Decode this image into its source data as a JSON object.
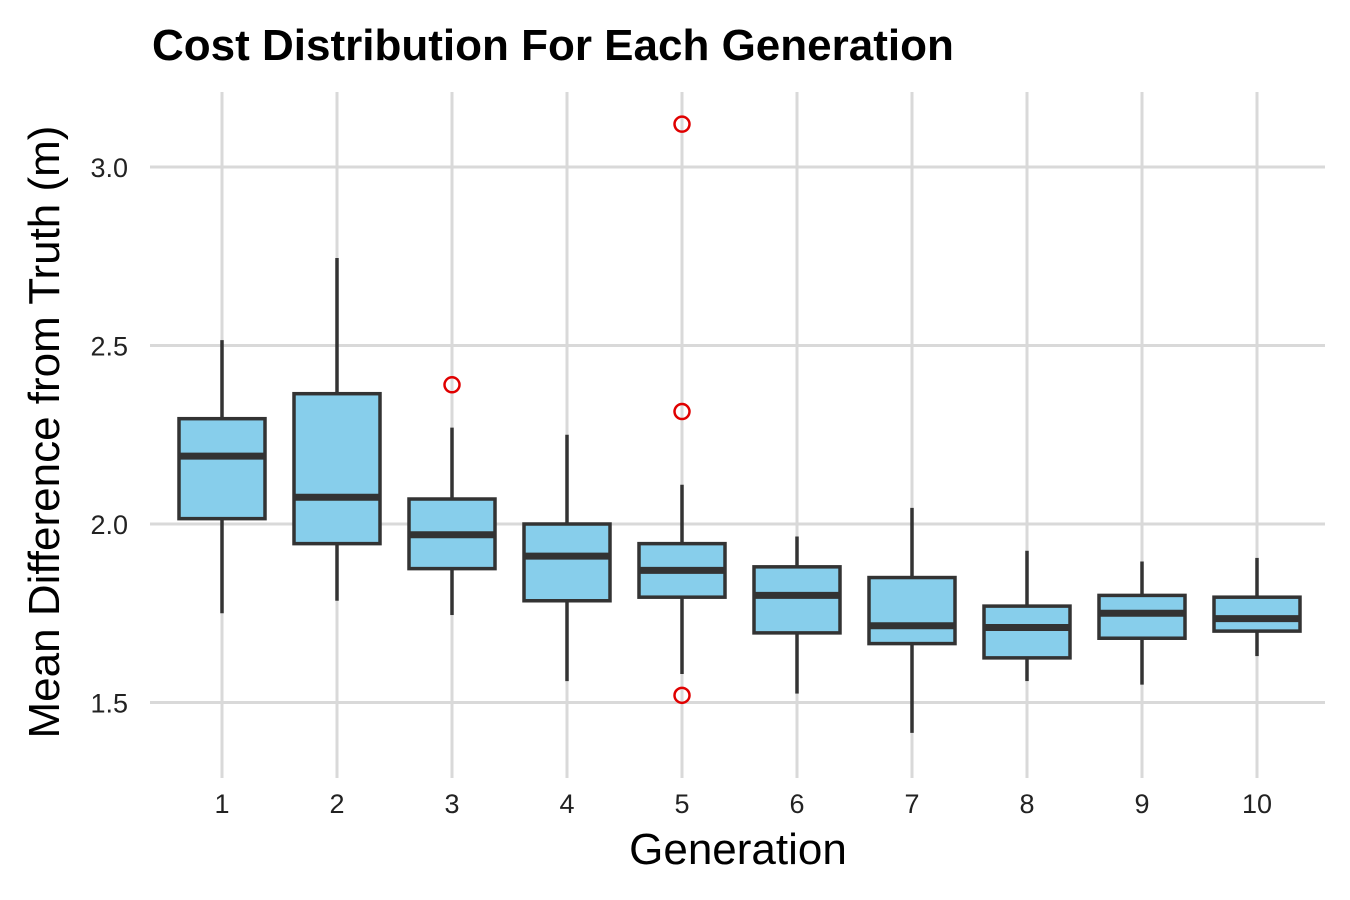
{
  "chart_data": {
    "type": "boxplot",
    "title": "Cost Distribution For Each Generation",
    "xlabel": "Generation",
    "ylabel": "Mean Difference from Truth (m)",
    "ylim": [
      1.3,
      3.2
    ],
    "yticks": [
      1.5,
      2.0,
      2.5,
      3.0
    ],
    "ytick_labels": [
      "1.5",
      "2.0",
      "2.5",
      "3.0"
    ],
    "grid": true,
    "legend": "none",
    "colors": {
      "box_fill": "#87CEEB",
      "box_stroke": "#333333",
      "outlier": "#e00000",
      "grid": "#d9d9d9"
    },
    "categories": [
      "1",
      "2",
      "3",
      "4",
      "5",
      "6",
      "7",
      "8",
      "9",
      "10"
    ],
    "boxes": [
      {
        "x": "1",
        "whisker_low": 1.75,
        "q1": 2.015,
        "median": 2.19,
        "q3": 2.295,
        "whisker_high": 2.515,
        "outliers": []
      },
      {
        "x": "2",
        "whisker_low": 1.785,
        "q1": 1.945,
        "median": 2.075,
        "q3": 2.365,
        "whisker_high": 2.745,
        "outliers": []
      },
      {
        "x": "3",
        "whisker_low": 1.745,
        "q1": 1.875,
        "median": 1.97,
        "q3": 2.07,
        "whisker_high": 2.27,
        "outliers": [
          2.39
        ]
      },
      {
        "x": "4",
        "whisker_low": 1.56,
        "q1": 1.785,
        "median": 1.91,
        "q3": 2.0,
        "whisker_high": 2.25,
        "outliers": []
      },
      {
        "x": "5",
        "whisker_low": 1.58,
        "q1": 1.795,
        "median": 1.87,
        "q3": 1.945,
        "whisker_high": 2.11,
        "outliers": [
          1.52,
          2.315,
          3.12
        ]
      },
      {
        "x": "6",
        "whisker_low": 1.525,
        "q1": 1.695,
        "median": 1.8,
        "q3": 1.88,
        "whisker_high": 1.965,
        "outliers": []
      },
      {
        "x": "7",
        "whisker_low": 1.415,
        "q1": 1.665,
        "median": 1.715,
        "q3": 1.85,
        "whisker_high": 2.045,
        "outliers": []
      },
      {
        "x": "8",
        "whisker_low": 1.56,
        "q1": 1.625,
        "median": 1.71,
        "q3": 1.77,
        "whisker_high": 1.925,
        "outliers": []
      },
      {
        "x": "9",
        "whisker_low": 1.55,
        "q1": 1.68,
        "median": 1.75,
        "q3": 1.8,
        "whisker_high": 1.895,
        "outliers": []
      },
      {
        "x": "10",
        "whisker_low": 1.63,
        "q1": 1.7,
        "median": 1.735,
        "q3": 1.795,
        "whisker_high": 1.905,
        "outliers": []
      }
    ]
  }
}
